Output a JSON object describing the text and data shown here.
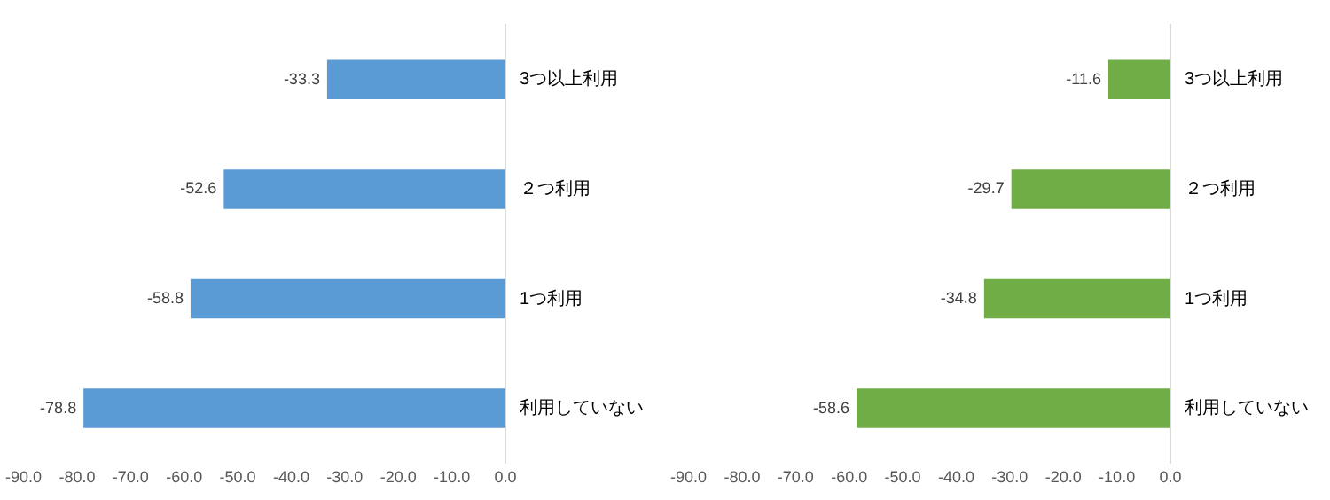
{
  "chart_data": [
    {
      "type": "bar",
      "orientation": "horizontal",
      "categories": [
        "3つ以上利用",
        "２つ利用",
        "1つ利用",
        "利用していない"
      ],
      "values": [
        -33.3,
        -52.6,
        -58.8,
        -78.8
      ],
      "color": "#5b9bd5",
      "data_labels": true,
      "xlim": [
        -90,
        0
      ],
      "xticks": [
        {
          "value": -90,
          "label": "-90.0"
        },
        {
          "value": -80,
          "label": "-80.0"
        },
        {
          "value": -70,
          "label": "-70.0"
        },
        {
          "value": -60,
          "label": "-60.0"
        },
        {
          "value": -50,
          "label": "-50.0"
        },
        {
          "value": -40,
          "label": "-40.0"
        },
        {
          "value": -30,
          "label": "-30.0"
        },
        {
          "value": -20,
          "label": "-20.0"
        },
        {
          "value": -10,
          "label": "-10.0"
        },
        {
          "value": 0,
          "label": "0.0"
        }
      ]
    },
    {
      "type": "bar",
      "orientation": "horizontal",
      "categories": [
        "3つ以上利用",
        "２つ利用",
        "1つ利用",
        "利用していない"
      ],
      "values": [
        -11.6,
        -29.7,
        -34.8,
        -58.6
      ],
      "color": "#70ad47",
      "data_labels": true,
      "xlim": [
        -90,
        0
      ],
      "xticks": [
        {
          "value": -90,
          "label": "-90.0"
        },
        {
          "value": -80,
          "label": "-80.0"
        },
        {
          "value": -70,
          "label": "-70.0"
        },
        {
          "value": -60,
          "label": "-60.0"
        },
        {
          "value": -50,
          "label": "-50.0"
        },
        {
          "value": -40,
          "label": "-40.0"
        },
        {
          "value": -30,
          "label": "-30.0"
        },
        {
          "value": -20,
          "label": "-20.0"
        },
        {
          "value": -10,
          "label": "-10.0"
        },
        {
          "value": 0,
          "label": "0.0"
        }
      ]
    }
  ]
}
